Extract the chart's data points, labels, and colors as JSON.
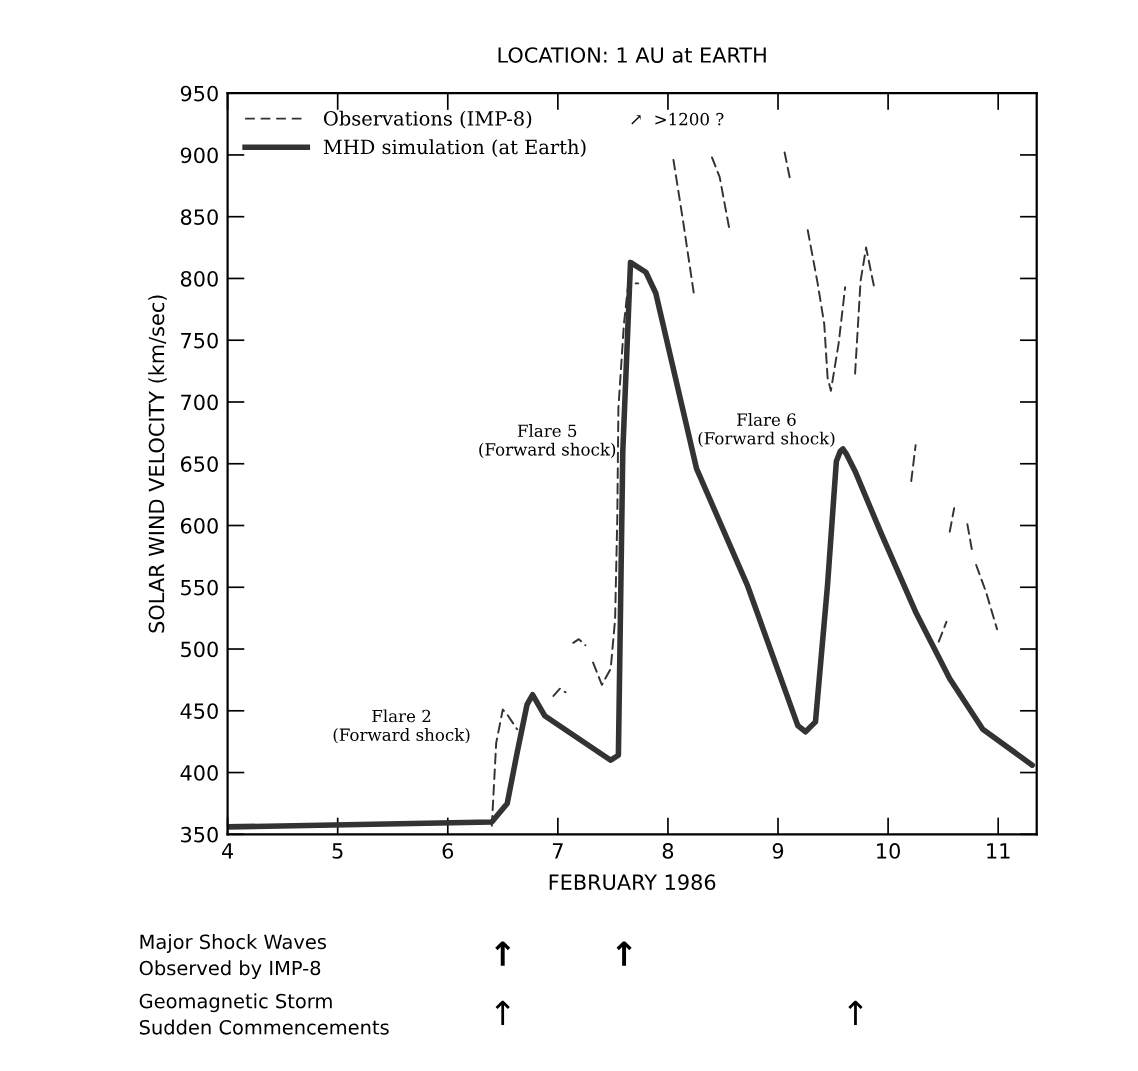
{
  "chart_data": {
    "type": "line",
    "title": "LOCATION: 1 AU at EARTH",
    "xlabel": "FEBRUARY 1986",
    "ylabel": "SOLAR WIND VELOCITY (km/sec)",
    "xlim": [
      4,
      11.35
    ],
    "xticks": [
      4,
      5,
      6,
      7,
      8,
      9,
      10,
      11
    ],
    "ylim": [
      350,
      950
    ],
    "yticks": [
      350,
      400,
      450,
      500,
      550,
      600,
      650,
      700,
      750,
      800,
      850,
      900,
      950
    ],
    "grid": false,
    "legend": "top left",
    "series": [
      {
        "name": "Observations (IMP-8)",
        "color": "#333333",
        "line_style": "dashed",
        "x": [
          6.4,
          6.44,
          6.5,
          6.54,
          6.63,
          6.7,
          6.96,
          7.02,
          7.07,
          7.1,
          7.14,
          7.19,
          7.25,
          7.28,
          7.32,
          7.4,
          7.48,
          7.52,
          7.54,
          7.55,
          7.6,
          7.64,
          7.73,
          7.85,
          8.05,
          8.14,
          8.2,
          8.24,
          8.3,
          8.4,
          8.47,
          8.56,
          8.8,
          9.06,
          9.11,
          9.2,
          9.27,
          9.36,
          9.42,
          9.45,
          9.48,
          9.55,
          9.61,
          9.65,
          9.7,
          9.75,
          9.8,
          9.88,
          10.0,
          10.21,
          10.25,
          10.35,
          10.46,
          10.53,
          10.545,
          10.56,
          10.6,
          10.66,
          10.72,
          10.76,
          10.78,
          10.8,
          10.89,
          10.99
        ],
        "values": [
          357,
          424,
          451,
          447,
          435,
          null,
          462,
          468,
          465,
          null,
          505,
          508,
          503,
          null,
          489,
          471,
          484,
          524,
          606,
          695,
          763,
          796,
          796,
          null,
          896,
          845,
          809,
          785,
          null,
          898,
          882,
          839,
          null,
          902,
          880,
          null,
          839,
          796,
          763,
          720,
          709,
          747,
          793,
          null,
          723,
          798,
          825,
          790,
          null,
          636,
          665,
          null,
          506,
          522,
          null,
          595,
          614,
          null,
          601,
          581,
          null,
          568,
          546,
          516
        ]
      },
      {
        "name": "MHD simulation (at Earth)",
        "color": "#333333",
        "line_style": "solid",
        "x": [
          4.0,
          6.4,
          6.54,
          6.63,
          6.72,
          6.77,
          6.88,
          7.48,
          7.55,
          7.59,
          7.66,
          7.8,
          7.89,
          8.26,
          8.72,
          9.18,
          9.25,
          9.34,
          9.45,
          9.53,
          9.565,
          9.59,
          9.62,
          9.7,
          9.94,
          10.25,
          10.56,
          10.86,
          11.31
        ],
        "values": [
          356,
          360,
          375,
          416,
          455,
          463,
          446,
          410,
          414,
          660,
          813,
          805,
          788,
          646,
          552,
          438,
          433,
          441,
          552,
          652,
          660,
          662,
          658,
          644,
          593,
          530,
          476,
          435,
          406
        ]
      }
    ],
    "annotations": [
      "↗  >1200 ?",
      "Flare 2\n(Forward shock)",
      "Flare 5\n(Forward shock)",
      "Flare 6\n(Forward shock)",
      "Major Shock Waves\nObserved by IMP-8",
      "↑",
      "↑",
      "Geomagnetic Storm\nSudden Commencements",
      "↑",
      "↑"
    ]
  }
}
